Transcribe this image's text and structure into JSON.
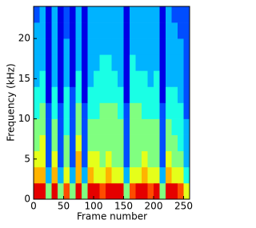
{
  "chart_data": {
    "type": "heatmap",
    "xlabel": "Frame number",
    "ylabel": "Frequency (kHz)",
    "xlim": [
      0,
      260
    ],
    "ylim": [
      0,
      24
    ],
    "xticks": [
      0,
      50,
      100,
      150,
      200,
      250
    ],
    "yticks": [
      0,
      5,
      10,
      15,
      20
    ],
    "xbins": [
      0,
      10,
      20,
      30,
      40,
      50,
      60,
      70,
      80,
      90,
      100,
      110,
      120,
      130,
      140,
      150,
      160,
      170,
      180,
      190,
      200,
      210,
      220,
      230,
      240,
      250,
      260
    ],
    "ybins": [
      0,
      2,
      4,
      6,
      8,
      10,
      12,
      14,
      16,
      18,
      20,
      22,
      24
    ],
    "colormap": "jet",
    "clim": [
      0,
      10
    ],
    "values": [
      [
        9,
        9,
        5,
        9,
        5,
        8,
        5,
        9,
        5,
        9,
        9,
        8,
        9,
        9,
        9,
        5,
        8,
        9,
        9,
        8,
        9,
        5,
        9,
        9,
        8,
        6
      ],
      [
        7,
        7,
        3,
        7,
        3,
        6,
        3,
        7,
        3,
        7,
        6,
        6,
        7,
        6,
        6,
        3,
        6,
        6,
        7,
        6,
        6,
        3,
        7,
        6,
        6,
        4
      ],
      [
        6,
        6,
        2,
        6,
        2,
        5,
        2,
        7,
        2,
        6,
        6,
        5,
        6,
        5,
        5,
        2,
        5,
        5,
        6,
        5,
        5,
        2,
        6,
        5,
        5,
        3
      ],
      [
        5,
        6,
        2,
        5,
        2,
        5,
        2,
        6,
        2,
        5,
        5,
        5,
        5,
        5,
        5,
        2,
        5,
        5,
        5,
        5,
        5,
        2,
        5,
        5,
        4,
        3
      ],
      [
        5,
        5,
        2,
        5,
        2,
        4,
        2,
        5,
        2,
        5,
        5,
        5,
        5,
        5,
        5,
        2,
        5,
        5,
        5,
        5,
        5,
        2,
        5,
        4,
        4,
        3
      ],
      [
        4,
        5,
        2,
        4,
        2,
        4,
        2,
        5,
        2,
        4,
        4,
        5,
        5,
        5,
        4,
        2,
        5,
        5,
        4,
        4,
        4,
        2,
        4,
        4,
        4,
        2
      ],
      [
        4,
        4,
        1,
        4,
        1,
        4,
        2,
        4,
        1,
        4,
        4,
        4,
        4,
        4,
        4,
        1,
        4,
        4,
        4,
        4,
        4,
        1,
        4,
        4,
        3,
        2
      ],
      [
        3,
        4,
        1,
        3,
        1,
        3,
        1,
        4,
        1,
        3,
        4,
        4,
        4,
        4,
        3,
        1,
        4,
        4,
        4,
        3,
        4,
        1,
        3,
        3,
        3,
        2
      ],
      [
        3,
        3,
        1,
        3,
        1,
        3,
        1,
        3,
        1,
        3,
        3,
        4,
        4,
        3,
        3,
        1,
        4,
        3,
        3,
        3,
        3,
        1,
        3,
        3,
        3,
        2
      ],
      [
        3,
        3,
        1,
        3,
        1,
        3,
        1,
        3,
        1,
        3,
        3,
        3,
        3,
        3,
        3,
        1,
        3,
        3,
        3,
        3,
        3,
        1,
        3,
        3,
        3,
        2
      ],
      [
        3,
        3,
        1,
        3,
        1,
        2,
        1,
        3,
        1,
        3,
        3,
        3,
        3,
        3,
        3,
        1,
        3,
        3,
        3,
        3,
        3,
        1,
        3,
        3,
        2,
        2
      ],
      [
        2,
        3,
        1,
        3,
        1,
        2,
        1,
        3,
        1,
        3,
        3,
        3,
        3,
        3,
        3,
        1,
        3,
        3,
        3,
        3,
        3,
        1,
        3,
        2,
        2,
        2
      ]
    ]
  }
}
